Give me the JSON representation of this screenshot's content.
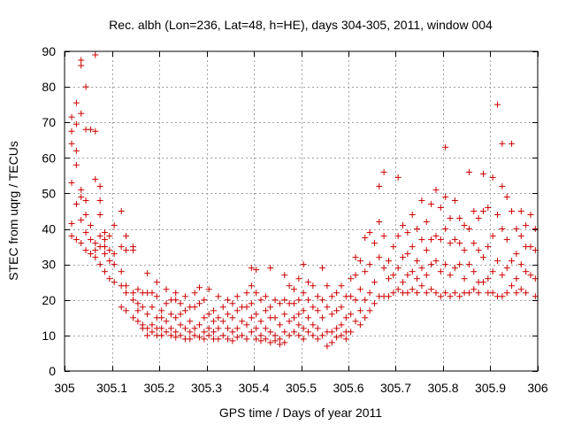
{
  "chart_data": {
    "type": "scatter",
    "title": "Rec. albh (Lon=236, Lat=48, h=HE), days 304-305, 2011, window 004",
    "xlabel": "GPS time / Days of year 2011",
    "ylabel": "STEC from uqrg / TECUs",
    "xlim": [
      305,
      306
    ],
    "ylim": [
      0,
      90
    ],
    "xticks": [
      305,
      305.1,
      305.2,
      305.3,
      305.4,
      305.5,
      305.6,
      305.7,
      305.8,
      305.9,
      306
    ],
    "xtick_labels": [
      "305",
      "305.1",
      "305.2",
      "305.3",
      "305.4",
      "305.5",
      "305.6",
      "305.7",
      "305.8",
      "305.9",
      "306"
    ],
    "yticks": [
      0,
      10,
      20,
      30,
      40,
      50,
      60,
      70,
      80,
      90
    ],
    "ytick_labels": [
      "0",
      "10",
      "20",
      "30",
      "40",
      "50",
      "60",
      "70",
      "80",
      "90"
    ],
    "grid": true,
    "marker": "plus",
    "marker_color": "#cc0000",
    "points": [
      [
        305.015,
        71.5
      ],
      [
        305.015,
        67.5
      ],
      [
        305.015,
        64
      ],
      [
        305.015,
        53
      ],
      [
        305.015,
        41.5
      ],
      [
        305.015,
        38
      ],
      [
        305.025,
        75.5
      ],
      [
        305.025,
        69.5
      ],
      [
        305.025,
        62
      ],
      [
        305.025,
        58
      ],
      [
        305.025,
        47
      ],
      [
        305.025,
        37
      ],
      [
        305.035,
        87.5
      ],
      [
        305.035,
        86
      ],
      [
        305.035,
        72.5
      ],
      [
        305.035,
        51
      ],
      [
        305.035,
        49
      ],
      [
        305.035,
        42.5
      ],
      [
        305.035,
        36
      ],
      [
        305.045,
        80
      ],
      [
        305.045,
        68
      ],
      [
        305.045,
        48
      ],
      [
        305.045,
        44
      ],
      [
        305.045,
        39
      ],
      [
        305.045,
        34
      ],
      [
        305.055,
        68
      ],
      [
        305.055,
        41
      ],
      [
        305.055,
        37
      ],
      [
        305.055,
        33
      ],
      [
        305.065,
        89
      ],
      [
        305.065,
        67.5
      ],
      [
        305.065,
        54
      ],
      [
        305.065,
        36
      ],
      [
        305.065,
        34
      ],
      [
        305.065,
        32
      ],
      [
        305.075,
        52
      ],
      [
        305.075,
        48
      ],
      [
        305.075,
        44
      ],
      [
        305.075,
        38
      ],
      [
        305.075,
        35
      ],
      [
        305.075,
        30
      ],
      [
        305.085,
        39
      ],
      [
        305.085,
        37
      ],
      [
        305.085,
        35
      ],
      [
        305.085,
        33
      ],
      [
        305.085,
        28
      ],
      [
        305.095,
        38
      ],
      [
        305.095,
        34
      ],
      [
        305.095,
        31
      ],
      [
        305.095,
        26
      ],
      [
        305.105,
        41
      ],
      [
        305.105,
        33
      ],
      [
        305.105,
        30
      ],
      [
        305.105,
        25
      ],
      [
        305.12,
        45
      ],
      [
        305.12,
        35
      ],
      [
        305.12,
        28
      ],
      [
        305.12,
        24
      ],
      [
        305.12,
        18
      ],
      [
        305.13,
        38
      ],
      [
        305.13,
        34
      ],
      [
        305.13,
        24
      ],
      [
        305.13,
        22
      ],
      [
        305.13,
        17
      ],
      [
        305.145,
        35
      ],
      [
        305.145,
        34
      ],
      [
        305.145,
        22
      ],
      [
        305.145,
        20
      ],
      [
        305.145,
        15
      ],
      [
        305.155,
        23
      ],
      [
        305.155,
        19
      ],
      [
        305.155,
        17
      ],
      [
        305.155,
        14
      ],
      [
        305.165,
        22
      ],
      [
        305.165,
        18
      ],
      [
        305.165,
        13
      ],
      [
        305.165,
        12
      ],
      [
        305.175,
        27.5
      ],
      [
        305.175,
        22
      ],
      [
        305.175,
        16
      ],
      [
        305.175,
        12
      ],
      [
        305.175,
        10
      ],
      [
        305.185,
        22
      ],
      [
        305.185,
        18
      ],
      [
        305.185,
        13
      ],
      [
        305.185,
        11
      ],
      [
        305.195,
        25
      ],
      [
        305.195,
        21
      ],
      [
        305.195,
        15
      ],
      [
        305.195,
        12
      ],
      [
        305.195,
        10
      ],
      [
        305.205,
        17
      ],
      [
        305.205,
        15
      ],
      [
        305.205,
        12
      ],
      [
        305.205,
        10
      ],
      [
        305.215,
        23
      ],
      [
        305.215,
        19
      ],
      [
        305.215,
        14
      ],
      [
        305.215,
        11
      ],
      [
        305.225,
        20
      ],
      [
        305.225,
        16
      ],
      [
        305.225,
        12
      ],
      [
        305.225,
        10
      ],
      [
        305.235,
        22
      ],
      [
        305.235,
        20
      ],
      [
        305.235,
        15
      ],
      [
        305.235,
        11
      ],
      [
        305.235,
        9.5
      ],
      [
        305.245,
        19
      ],
      [
        305.245,
        16
      ],
      [
        305.245,
        13
      ],
      [
        305.245,
        10
      ],
      [
        305.255,
        21
      ],
      [
        305.255,
        17
      ],
      [
        305.255,
        12
      ],
      [
        305.255,
        9
      ],
      [
        305.265,
        18
      ],
      [
        305.265,
        14
      ],
      [
        305.265,
        11
      ],
      [
        305.265,
        9
      ],
      [
        305.275,
        22
      ],
      [
        305.275,
        18
      ],
      [
        305.275,
        12
      ],
      [
        305.275,
        10
      ],
      [
        305.285,
        23.5
      ],
      [
        305.285,
        19
      ],
      [
        305.285,
        13
      ],
      [
        305.285,
        9.5
      ],
      [
        305.295,
        20
      ],
      [
        305.295,
        15
      ],
      [
        305.295,
        11
      ],
      [
        305.295,
        9
      ],
      [
        305.305,
        23
      ],
      [
        305.305,
        16
      ],
      [
        305.305,
        12
      ],
      [
        305.305,
        10
      ],
      [
        305.315,
        17
      ],
      [
        305.315,
        14
      ],
      [
        305.315,
        11
      ],
      [
        305.315,
        9
      ],
      [
        305.325,
        21
      ],
      [
        305.325,
        15
      ],
      [
        305.325,
        12
      ],
      [
        305.325,
        9
      ],
      [
        305.335,
        18
      ],
      [
        305.335,
        14
      ],
      [
        305.335,
        10
      ],
      [
        305.345,
        20
      ],
      [
        305.345,
        16
      ],
      [
        305.345,
        12
      ],
      [
        305.345,
        9
      ],
      [
        305.355,
        19
      ],
      [
        305.355,
        15
      ],
      [
        305.355,
        11
      ],
      [
        305.355,
        8.5
      ],
      [
        305.365,
        21
      ],
      [
        305.365,
        17
      ],
      [
        305.365,
        12
      ],
      [
        305.365,
        9.5
      ],
      [
        305.375,
        18
      ],
      [
        305.375,
        14
      ],
      [
        305.375,
        10
      ],
      [
        305.385,
        22
      ],
      [
        305.385,
        18
      ],
      [
        305.385,
        13
      ],
      [
        305.385,
        9
      ],
      [
        305.395,
        29
      ],
      [
        305.395,
        24
      ],
      [
        305.395,
        19
      ],
      [
        305.395,
        15
      ],
      [
        305.395,
        11
      ],
      [
        305.405,
        28.5
      ],
      [
        305.405,
        22
      ],
      [
        305.405,
        16
      ],
      [
        305.405,
        12
      ],
      [
        305.405,
        9
      ],
      [
        305.415,
        20
      ],
      [
        305.415,
        14
      ],
      [
        305.415,
        10
      ],
      [
        305.415,
        8.5
      ],
      [
        305.425,
        21
      ],
      [
        305.425,
        17
      ],
      [
        305.425,
        12
      ],
      [
        305.425,
        9
      ],
      [
        305.435,
        29
      ],
      [
        305.435,
        18
      ],
      [
        305.435,
        15
      ],
      [
        305.435,
        11
      ],
      [
        305.435,
        8
      ],
      [
        305.445,
        20
      ],
      [
        305.445,
        15
      ],
      [
        305.445,
        10
      ],
      [
        305.445,
        8.5
      ],
      [
        305.455,
        19
      ],
      [
        305.455,
        13
      ],
      [
        305.455,
        9
      ],
      [
        305.455,
        7.5
      ],
      [
        305.465,
        27
      ],
      [
        305.465,
        20
      ],
      [
        305.465,
        16
      ],
      [
        305.465,
        11
      ],
      [
        305.465,
        8
      ],
      [
        305.475,
        24
      ],
      [
        305.475,
        19
      ],
      [
        305.475,
        14
      ],
      [
        305.475,
        10
      ],
      [
        305.485,
        23
      ],
      [
        305.485,
        19
      ],
      [
        305.485,
        15
      ],
      [
        305.485,
        11
      ],
      [
        305.495,
        26
      ],
      [
        305.495,
        20
      ],
      [
        305.495,
        16
      ],
      [
        305.495,
        13
      ],
      [
        305.495,
        10
      ],
      [
        305.505,
        30
      ],
      [
        305.505,
        22
      ],
      [
        305.505,
        17
      ],
      [
        305.505,
        12
      ],
      [
        305.505,
        9
      ],
      [
        305.515,
        25
      ],
      [
        305.515,
        20
      ],
      [
        305.515,
        15
      ],
      [
        305.515,
        11
      ],
      [
        305.525,
        24
      ],
      [
        305.525,
        18
      ],
      [
        305.525,
        13
      ],
      [
        305.525,
        10
      ],
      [
        305.535,
        21
      ],
      [
        305.535,
        17
      ],
      [
        305.535,
        12
      ],
      [
        305.535,
        9
      ],
      [
        305.545,
        29
      ],
      [
        305.545,
        20
      ],
      [
        305.545,
        15
      ],
      [
        305.545,
        10
      ],
      [
        305.555,
        24
      ],
      [
        305.555,
        18
      ],
      [
        305.555,
        11
      ],
      [
        305.555,
        7
      ],
      [
        305.565,
        21
      ],
      [
        305.565,
        16
      ],
      [
        305.565,
        11
      ],
      [
        305.565,
        8
      ],
      [
        305.575,
        22
      ],
      [
        305.575,
        17
      ],
      [
        305.575,
        12
      ],
      [
        305.575,
        9.5
      ],
      [
        305.585,
        24
      ],
      [
        305.585,
        18
      ],
      [
        305.585,
        13
      ],
      [
        305.585,
        10
      ],
      [
        305.595,
        21
      ],
      [
        305.595,
        15
      ],
      [
        305.595,
        11
      ],
      [
        305.595,
        9
      ],
      [
        305.605,
        26
      ],
      [
        305.605,
        21
      ],
      [
        305.605,
        16
      ],
      [
        305.605,
        11
      ],
      [
        305.615,
        32
      ],
      [
        305.615,
        27
      ],
      [
        305.615,
        20
      ],
      [
        305.615,
        14
      ],
      [
        305.625,
        31
      ],
      [
        305.625,
        23
      ],
      [
        305.625,
        17
      ],
      [
        305.625,
        13
      ],
      [
        305.635,
        37.5
      ],
      [
        305.635,
        28
      ],
      [
        305.635,
        20
      ],
      [
        305.635,
        15
      ],
      [
        305.645,
        39
      ],
      [
        305.645,
        30
      ],
      [
        305.645,
        22
      ],
      [
        305.645,
        17
      ],
      [
        305.655,
        36
      ],
      [
        305.655,
        25
      ],
      [
        305.655,
        19
      ],
      [
        305.665,
        52
      ],
      [
        305.665,
        42
      ],
      [
        305.665,
        32
      ],
      [
        305.665,
        21
      ],
      [
        305.675,
        56
      ],
      [
        305.675,
        38
      ],
      [
        305.675,
        29
      ],
      [
        305.675,
        21
      ],
      [
        305.685,
        31
      ],
      [
        305.685,
        26
      ],
      [
        305.685,
        21
      ],
      [
        305.695,
        35
      ],
      [
        305.695,
        27
      ],
      [
        305.695,
        22
      ],
      [
        305.705,
        54.5
      ],
      [
        305.705,
        38
      ],
      [
        305.705,
        29
      ],
      [
        305.705,
        23
      ],
      [
        305.715,
        41
      ],
      [
        305.715,
        32
      ],
      [
        305.715,
        25
      ],
      [
        305.715,
        22
      ],
      [
        305.725,
        39
      ],
      [
        305.725,
        33
      ],
      [
        305.725,
        27
      ],
      [
        305.725,
        22
      ],
      [
        305.735,
        44
      ],
      [
        305.735,
        35
      ],
      [
        305.735,
        28
      ],
      [
        305.735,
        23
      ],
      [
        305.745,
        40
      ],
      [
        305.745,
        31
      ],
      [
        305.745,
        26
      ],
      [
        305.745,
        22
      ],
      [
        305.755,
        48
      ],
      [
        305.755,
        37
      ],
      [
        305.755,
        29
      ],
      [
        305.755,
        24
      ],
      [
        305.765,
        42
      ],
      [
        305.765,
        34
      ],
      [
        305.765,
        27
      ],
      [
        305.765,
        22
      ],
      [
        305.775,
        47
      ],
      [
        305.775,
        37
      ],
      [
        305.775,
        30
      ],
      [
        305.775,
        23
      ],
      [
        305.785,
        51
      ],
      [
        305.785,
        38
      ],
      [
        305.785,
        31
      ],
      [
        305.785,
        22
      ],
      [
        305.795,
        46
      ],
      [
        305.795,
        37
      ],
      [
        305.795,
        28
      ],
      [
        305.795,
        21
      ],
      [
        305.805,
        63
      ],
      [
        305.805,
        49
      ],
      [
        305.805,
        40
      ],
      [
        305.805,
        30
      ],
      [
        305.805,
        22
      ],
      [
        305.815,
        43
      ],
      [
        305.815,
        36
      ],
      [
        305.815,
        27
      ],
      [
        305.815,
        21
      ],
      [
        305.825,
        48
      ],
      [
        305.825,
        37
      ],
      [
        305.825,
        29
      ],
      [
        305.825,
        22
      ],
      [
        305.835,
        43
      ],
      [
        305.835,
        36
      ],
      [
        305.835,
        30
      ],
      [
        305.835,
        21
      ],
      [
        305.845,
        41
      ],
      [
        305.845,
        34
      ],
      [
        305.845,
        26
      ],
      [
        305.845,
        22
      ],
      [
        305.855,
        56
      ],
      [
        305.855,
        40
      ],
      [
        305.855,
        30
      ],
      [
        305.855,
        22
      ],
      [
        305.865,
        45
      ],
      [
        305.865,
        36
      ],
      [
        305.865,
        28
      ],
      [
        305.865,
        23
      ],
      [
        305.875,
        43
      ],
      [
        305.875,
        34
      ],
      [
        305.875,
        25
      ],
      [
        305.875,
        22
      ],
      [
        305.885,
        55.5
      ],
      [
        305.885,
        45
      ],
      [
        305.885,
        32
      ],
      [
        305.885,
        25
      ],
      [
        305.895,
        46
      ],
      [
        305.895,
        35
      ],
      [
        305.895,
        26
      ],
      [
        305.895,
        22
      ],
      [
        305.905,
        54.5
      ],
      [
        305.905,
        38
      ],
      [
        305.905,
        28
      ],
      [
        305.905,
        22
      ],
      [
        305.915,
        75
      ],
      [
        305.915,
        44
      ],
      [
        305.915,
        31
      ],
      [
        305.915,
        21
      ],
      [
        305.925,
        64
      ],
      [
        305.925,
        52
      ],
      [
        305.925,
        40
      ],
      [
        305.925,
        27
      ],
      [
        305.925,
        21
      ],
      [
        305.935,
        49
      ],
      [
        305.935,
        37
      ],
      [
        305.935,
        29
      ],
      [
        305.935,
        22
      ],
      [
        305.945,
        64
      ],
      [
        305.945,
        45
      ],
      [
        305.945,
        31
      ],
      [
        305.945,
        24
      ],
      [
        305.955,
        40
      ],
      [
        305.955,
        33
      ],
      [
        305.955,
        26
      ],
      [
        305.955,
        22
      ],
      [
        305.965,
        45
      ],
      [
        305.965,
        38
      ],
      [
        305.965,
        30
      ],
      [
        305.965,
        23
      ],
      [
        305.975,
        41
      ],
      [
        305.975,
        35
      ],
      [
        305.975,
        28
      ],
      [
        305.975,
        22
      ],
      [
        305.985,
        44
      ],
      [
        305.985,
        35
      ],
      [
        305.985,
        27
      ],
      [
        305.995,
        40
      ],
      [
        305.995,
        34
      ],
      [
        305.995,
        26
      ],
      [
        305.995,
        21
      ]
    ]
  }
}
